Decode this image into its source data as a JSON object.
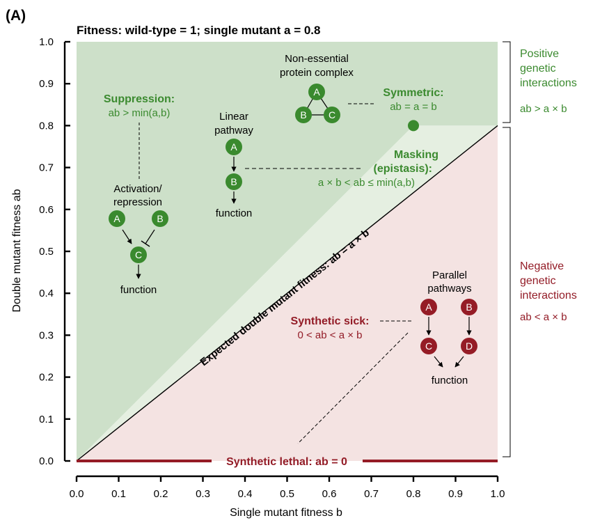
{
  "chart_data": {
    "type": "area",
    "panel_label": "(A)",
    "title": "Fitness: wild-type = 1; single mutant a = 0.8",
    "xlabel": "Single mutant fitness b",
    "ylabel": "Double mutant fitness ab",
    "xlim": [
      0.0,
      1.0
    ],
    "ylim": [
      0.0,
      1.0
    ],
    "x_ticks": [
      "0.0",
      "0.1",
      "0.2",
      "0.3",
      "0.4",
      "0.5",
      "0.6",
      "0.7",
      "0.8",
      "0.9",
      "1.0"
    ],
    "y_ticks": [
      "0.0",
      "0.1",
      "0.2",
      "0.3",
      "0.4",
      "0.5",
      "0.6",
      "0.7",
      "0.8",
      "0.9",
      "1.0"
    ],
    "single_mutant_a": 0.8,
    "expected_line": {
      "label": "Expected double mutant fitness: ab = a × b",
      "points": [
        [
          0.0,
          0.0
        ],
        [
          1.0,
          0.8
        ]
      ]
    },
    "regions": [
      {
        "name": "Suppression",
        "color": "#cde0c9",
        "polygon": [
          [
            0.0,
            0.0
          ],
          [
            0.8,
            0.8
          ],
          [
            1.0,
            0.8
          ],
          [
            1.0,
            1.0
          ],
          [
            0.0,
            1.0
          ]
        ]
      },
      {
        "name": "Masking",
        "color": "#e5efe1",
        "polygon": [
          [
            0.0,
            0.0
          ],
          [
            0.8,
            0.8
          ],
          [
            1.0,
            0.8
          ]
        ]
      },
      {
        "name": "Negative",
        "color": "#f4e3e2",
        "polygon": [
          [
            0.0,
            0.0
          ],
          [
            1.0,
            0.8
          ],
          [
            1.0,
            0.0
          ]
        ]
      }
    ],
    "symmetric_point": [
      0.8,
      0.8
    ],
    "synthetic_lethal_line": {
      "y": 0.0,
      "x_range": [
        0.0,
        1.0
      ]
    },
    "colors": {
      "green": "#3a8a2e",
      "red": "#951c26",
      "green_label": "#3b8a2f",
      "red_label": "#931c27"
    }
  },
  "annotations": {
    "suppression_title": "Suppression:",
    "suppression_eq": "ab > min(a,b)",
    "activation_line1": "Activation/",
    "activation_line2": "repression",
    "linear_line1": "Linear",
    "linear_line2": "pathway",
    "complex_line1": "Non-essential",
    "complex_line2": "protein complex",
    "symmetric_title": "Symmetric:",
    "symmetric_eq": "ab = a = b",
    "masking_title": "Masking",
    "masking_sub": "(epistasis):",
    "masking_eq": "a × b < ab ≤ min(a,b)",
    "parallel_line1": "Parallel",
    "parallel_line2": "pathways",
    "sick_title": "Synthetic sick:",
    "sick_eq": "0 < ab < a × b",
    "lethal": "Synthetic lethal: ab = 0",
    "function_label": "function"
  },
  "nodes": {
    "a": "A",
    "b": "B",
    "c": "C",
    "d": "D"
  },
  "side_labels": {
    "positive_line1": "Positive",
    "positive_line2": "genetic",
    "positive_line3": "interactions",
    "positive_eq": "ab > a × b",
    "negative_line1": "Negative",
    "negative_line2": "genetic",
    "negative_line3": "interactions",
    "negative_eq": "ab < a × b"
  }
}
